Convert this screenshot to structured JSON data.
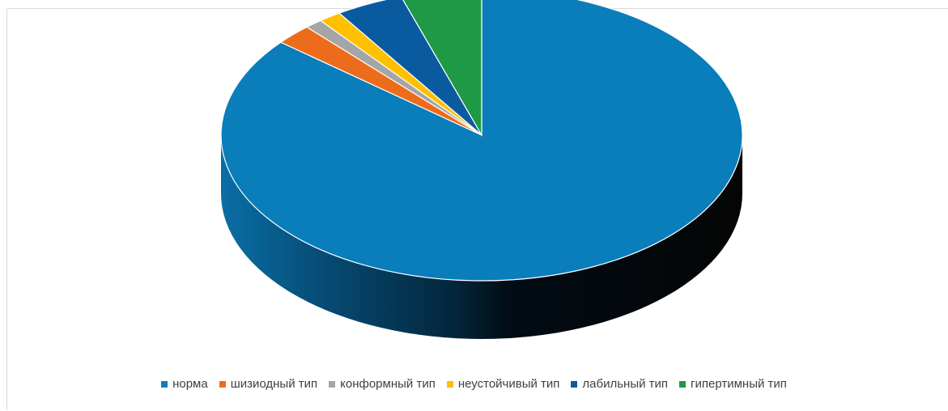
{
  "chart_data": {
    "type": "pie",
    "style": "3d",
    "categories": [
      "норма",
      "шизиодный тип",
      "конформный тип",
      "неустойчивый тип",
      "лабильный тип",
      "гипертимный тип"
    ],
    "values": [
      86.0,
      2.3,
      1.1,
      1.4,
      4.2,
      5.0
    ],
    "colors": [
      "#0a7dbb",
      "#ec6c1c",
      "#a5a5a5",
      "#ffc000",
      "#0a5aa0",
      "#1e9a47"
    ],
    "legend_position": "bottom",
    "title": ""
  }
}
